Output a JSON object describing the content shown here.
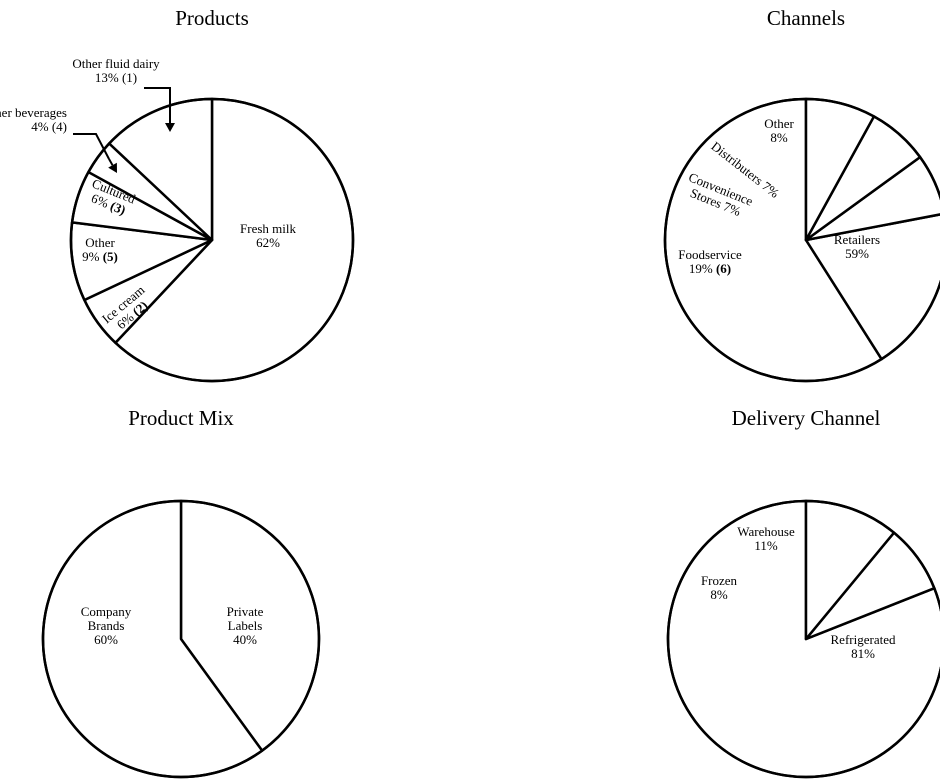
{
  "chart_data": [
    {
      "type": "pie",
      "title": "Products",
      "slices": [
        {
          "label": "Fresh milk",
          "value": 62,
          "value_text": "62%",
          "note": ""
        },
        {
          "label": "Ice cream",
          "value": 6,
          "value_text": "6%",
          "note": "(2)"
        },
        {
          "label": "Other",
          "value": 9,
          "value_text": "9%",
          "note": "(5)"
        },
        {
          "label": "Cultured",
          "value": 6,
          "value_text": "6%",
          "note": "(3)"
        },
        {
          "label": "Other beverages",
          "value": 4,
          "value_text": "4% (4)",
          "note": ""
        },
        {
          "label": "Other fluid dairy",
          "value": 13,
          "value_text": "13% (1)",
          "note": ""
        }
      ]
    },
    {
      "type": "pie",
      "title": "Channels",
      "slices": [
        {
          "label": "Retailers",
          "value": 59,
          "value_text": "59%",
          "note": ""
        },
        {
          "label": "Foodservice",
          "value": 19,
          "value_text": "19%",
          "note": "(6)"
        },
        {
          "label": "Convenience Stores",
          "value": 7,
          "value_text": "7%",
          "note": ""
        },
        {
          "label": "Distributers",
          "value": 7,
          "value_text": "7%",
          "note": ""
        },
        {
          "label": "Other",
          "value": 8,
          "value_text": "8%",
          "note": ""
        }
      ]
    },
    {
      "type": "pie",
      "title": "Product Mix",
      "slices": [
        {
          "label": "Private Labels",
          "value": 40,
          "value_text": "40%",
          "note": ""
        },
        {
          "label": "Company Brands",
          "value": 60,
          "value_text": "60%",
          "note": ""
        }
      ]
    },
    {
      "type": "pie",
      "title": "Delivery Channel",
      "slices": [
        {
          "label": "Refrigerated",
          "value": 81,
          "value_text": "81%",
          "note": ""
        },
        {
          "label": "Frozen",
          "value": 8,
          "value_text": "8%",
          "note": ""
        },
        {
          "label": "Warehouse",
          "value": 11,
          "value_text": "11%",
          "note": ""
        }
      ]
    }
  ]
}
